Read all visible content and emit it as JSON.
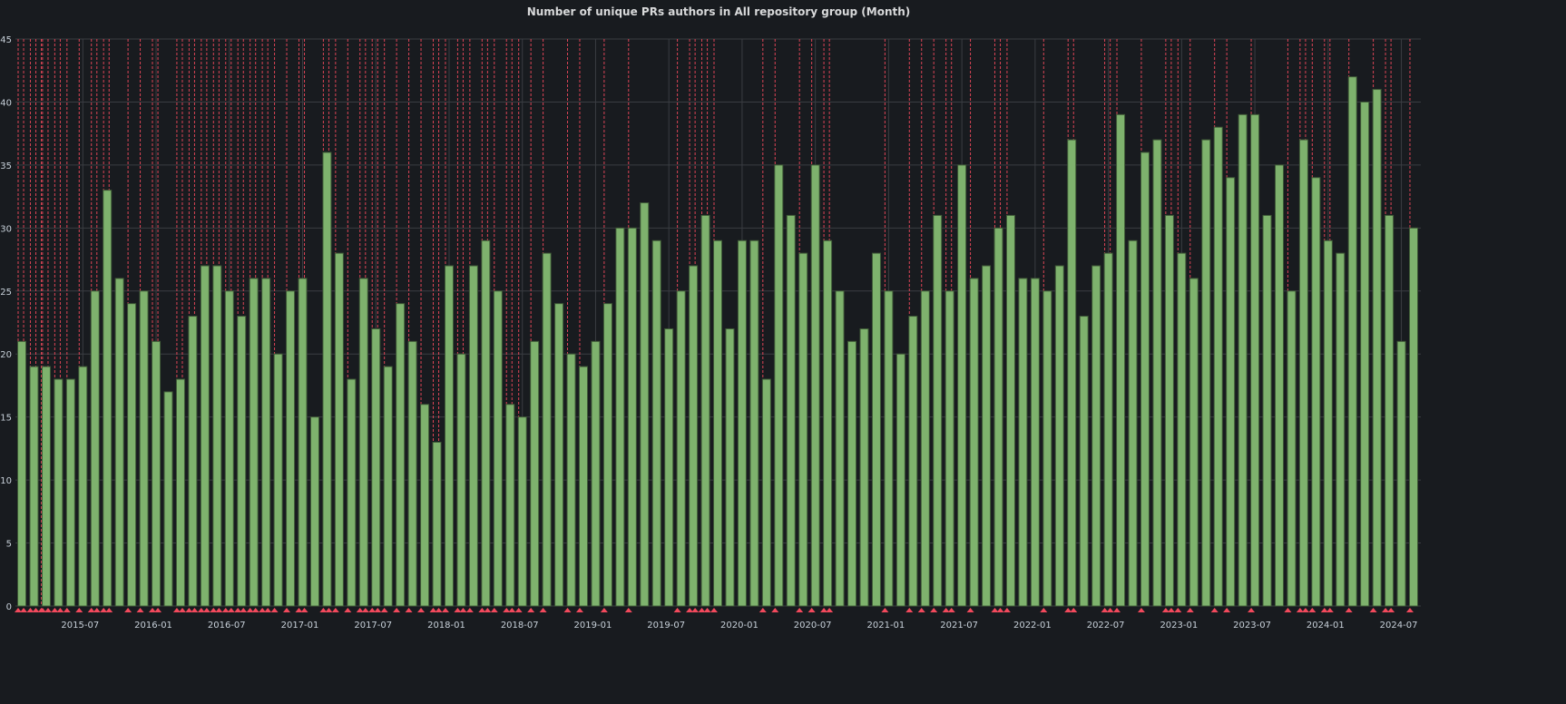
{
  "chart_data": {
    "type": "bar",
    "title": "Number of unique PRs authors in All repository group (Month)",
    "xlabel": "",
    "ylabel": "",
    "ylim": [
      0,
      45
    ],
    "yticks": [
      0,
      5,
      10,
      15,
      20,
      25,
      30,
      35,
      40,
      45
    ],
    "grid": true,
    "legend": "none",
    "start_month": "2015-02",
    "end_month": "2024-08",
    "xtick_labels": [
      "2015-07",
      "2016-01",
      "2016-07",
      "2017-01",
      "2017-07",
      "2018-01",
      "2018-07",
      "2019-01",
      "2019-07",
      "2020-01",
      "2020-07",
      "2021-01",
      "2021-07",
      "2022-01",
      "2022-07",
      "2023-01",
      "2023-07",
      "2024-01",
      "2024-07"
    ],
    "values": [
      21,
      19,
      19,
      18,
      18,
      19,
      25,
      33,
      26,
      24,
      25,
      21,
      17,
      18,
      23,
      27,
      27,
      25,
      23,
      26,
      26,
      20,
      25,
      26,
      15,
      36,
      28,
      18,
      26,
      22,
      19,
      24,
      21,
      16,
      13,
      27,
      20,
      27,
      29,
      25,
      16,
      15,
      21,
      28,
      24,
      20,
      19,
      21,
      24,
      30,
      30,
      32,
      29,
      22,
      25,
      27,
      31,
      29,
      22,
      29,
      29,
      18,
      35,
      31,
      28,
      35,
      29,
      25,
      21,
      22,
      28,
      25,
      20,
      23,
      25,
      31,
      25,
      35,
      26,
      27,
      30,
      31,
      26,
      26,
      25,
      27,
      37,
      23,
      27,
      28,
      39,
      29,
      36,
      37,
      31,
      28,
      26,
      37,
      38,
      34,
      39,
      39,
      31,
      35,
      25,
      37,
      34,
      29,
      28,
      42,
      40,
      41,
      31,
      21,
      30
    ],
    "colors": {
      "bar": "#7eb26d",
      "bar_edge": "#3f5a37",
      "annotation": "#f2495c",
      "background": "#181b1f",
      "grid": "#3a3d42"
    },
    "annotations_months": [
      "2015-02",
      "2015-02",
      "2015-03",
      "2015-03",
      "2015-03",
      "2015-04",
      "2015-04",
      "2015-05",
      "2015-05",
      "2015-06",
      "2015-07",
      "2015-08",
      "2015-08",
      "2015-09",
      "2015-09",
      "2015-11",
      "2015-12",
      "2016-01",
      "2016-01",
      "2016-03",
      "2016-03",
      "2016-04",
      "2016-04",
      "2016-05",
      "2016-05",
      "2016-06",
      "2016-06",
      "2016-07",
      "2016-07",
      "2016-08",
      "2016-08",
      "2016-09",
      "2016-09",
      "2016-10",
      "2016-10",
      "2016-11",
      "2016-12",
      "2017-01",
      "2017-01",
      "2017-03",
      "2017-03",
      "2017-04",
      "2017-05",
      "2017-06",
      "2017-06",
      "2017-07",
      "2017-07",
      "2017-08",
      "2017-09",
      "2017-10",
      "2017-11",
      "2017-12",
      "2017-12",
      "2018-01",
      "2018-02",
      "2018-02",
      "2018-03",
      "2018-04",
      "2018-04",
      "2018-05",
      "2018-06",
      "2018-06",
      "2018-07",
      "2018-08",
      "2018-09",
      "2018-11",
      "2018-12",
      "2019-02",
      "2019-04",
      "2019-08",
      "2019-09",
      "2019-09",
      "2019-10",
      "2019-10",
      "2019-11",
      "2020-03",
      "2020-04",
      "2020-06",
      "2020-07",
      "2020-08",
      "2020-08",
      "2021-01",
      "2021-03",
      "2021-04",
      "2021-05",
      "2021-06",
      "2021-06",
      "2021-08",
      "2021-10",
      "2021-10",
      "2021-11",
      "2022-02",
      "2022-04",
      "2022-04",
      "2022-07",
      "2022-07",
      "2022-08",
      "2022-10",
      "2022-12",
      "2022-12",
      "2023-01",
      "2023-02",
      "2023-04",
      "2023-05",
      "2023-07",
      "2023-10",
      "2023-11",
      "2023-11",
      "2023-12",
      "2024-01",
      "2024-01",
      "2024-03",
      "2024-05",
      "2024-06",
      "2024-06",
      "2024-08"
    ]
  }
}
